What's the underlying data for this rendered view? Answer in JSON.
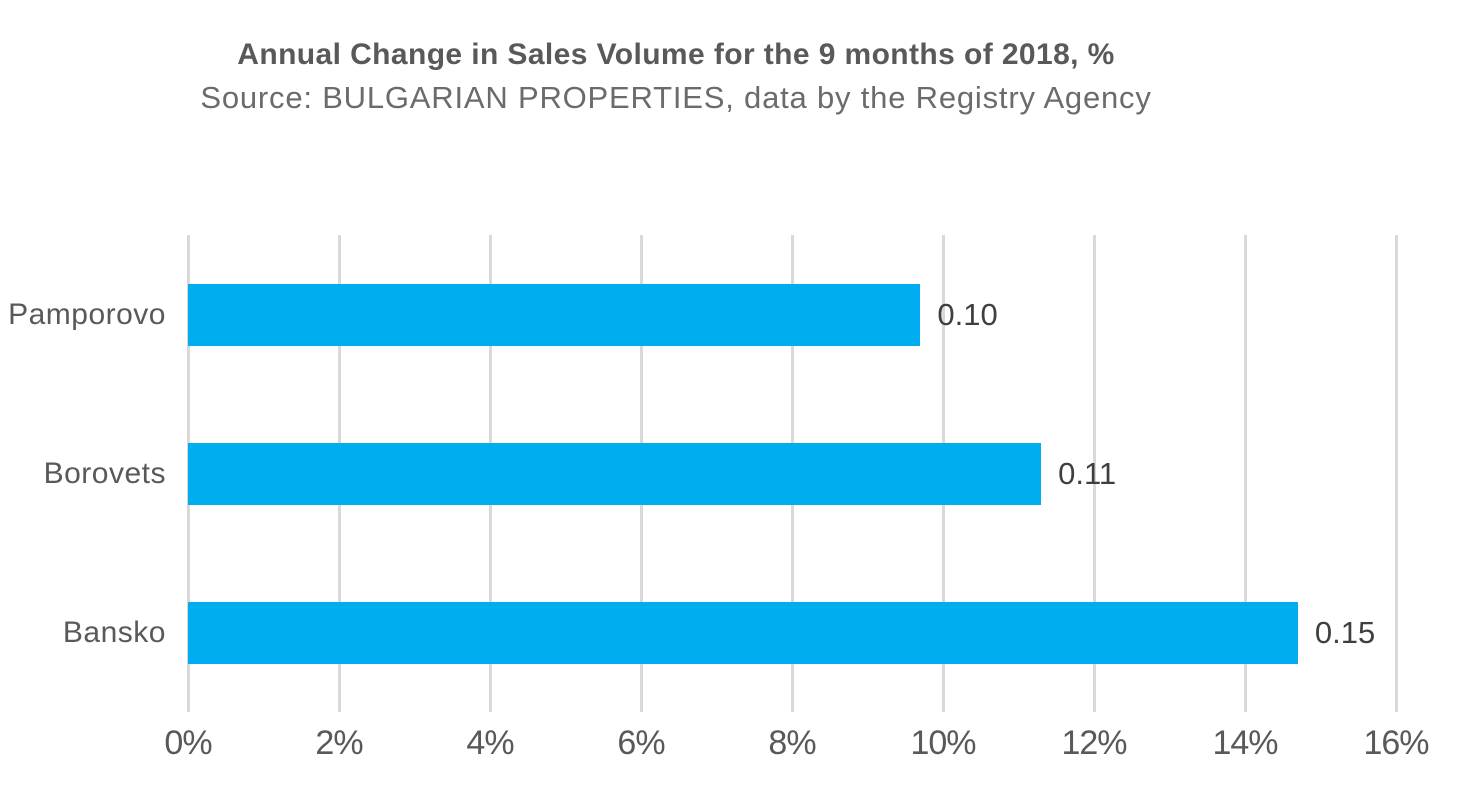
{
  "header": {
    "title": "Annual Change in Sales Volume for the 9 months of 2018, %",
    "subtitle": "Source: BULGARIAN PROPERTIES, data by the Registry Agency"
  },
  "chart_data": {
    "type": "bar",
    "orientation": "horizontal",
    "title": "Annual Change in Sales Volume for the 9 months of 2018, %",
    "subtitle": "Source: BULGARIAN PROPERTIES, data by the Registry Agency",
    "categories": [
      "Pamporovo",
      "Borovets",
      "Bansko"
    ],
    "values_percent": [
      9.7,
      11.3,
      14.7
    ],
    "data_labels": [
      "0.10",
      "0.11",
      "0.15"
    ],
    "xlabel": "",
    "ylabel": "",
    "xlim": [
      0,
      16
    ],
    "x_ticks": [
      "0%",
      "2%",
      "4%",
      "6%",
      "8%",
      "10%",
      "12%",
      "14%",
      "16%"
    ],
    "grid": "vertical-only",
    "legend": "none",
    "colors": {
      "bar": "#00aef0",
      "gridline": "#d9d9d9",
      "title_text": "#595959",
      "axis_text": "#595959",
      "data_label_text": "#3f3f3f",
      "background": "#ffffff"
    }
  }
}
